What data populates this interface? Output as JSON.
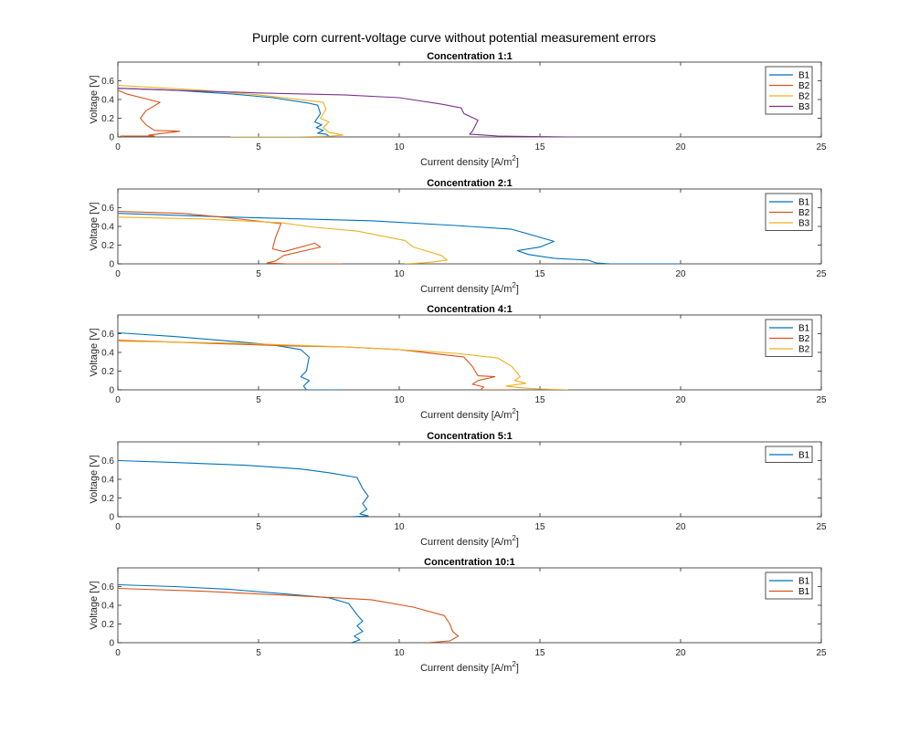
{
  "figure": {
    "title": "Purple corn current-voltage curve without potential measurement errors"
  },
  "colors": {
    "blue": "#0072BD",
    "orange": "#D95319",
    "yellow": "#EDB120",
    "purple": "#7E2F8E",
    "teal": "#1a8a7a"
  },
  "chart_data": [
    {
      "type": "line",
      "title": "Concentration 1:1",
      "xlabel": "Current density [A/m",
      "xlabel_sup": "2",
      "xlabel_tail": "]",
      "ylabel": "Voltage [V]",
      "xlim": [
        0,
        25
      ],
      "ylim": [
        0,
        0.8
      ],
      "xticks": [
        0,
        5,
        10,
        15,
        20,
        25
      ],
      "yticks": [
        0,
        0.2,
        0.4,
        0.6
      ],
      "legend_position": "top-right",
      "series": [
        {
          "name": "B1",
          "color": "#0072BD",
          "points": [
            [
              0,
              0.52
            ],
            [
              2,
              0.5
            ],
            [
              4,
              0.46
            ],
            [
              5.5,
              0.42
            ],
            [
              6.8,
              0.36
            ],
            [
              7.1,
              0.34
            ],
            [
              7.2,
              0.25
            ],
            [
              7.0,
              0.16
            ],
            [
              7.25,
              0.13
            ],
            [
              7.05,
              0.1
            ],
            [
              7.3,
              0.07
            ],
            [
              7.1,
              0.04
            ],
            [
              7.4,
              0.03
            ],
            [
              7.5,
              0.01
            ],
            [
              7.2,
              0
            ]
          ]
        },
        {
          "name": "B2",
          "color": "#D95319",
          "points": [
            [
              0,
              0.5
            ],
            [
              0.3,
              0.46
            ],
            [
              1.1,
              0.4
            ],
            [
              1.5,
              0.37
            ],
            [
              1.0,
              0.28
            ],
            [
              0.8,
              0.2
            ],
            [
              1.0,
              0.13
            ],
            [
              1.3,
              0.07
            ],
            [
              2.2,
              0.06
            ],
            [
              1.1,
              0.02
            ],
            [
              1.3,
              0.01
            ],
            [
              0.1,
              0.01
            ],
            [
              0.2,
              0
            ]
          ]
        },
        {
          "name": "B2",
          "color": "#EDB120",
          "points": [
            [
              0,
              0.55
            ],
            [
              3,
              0.5
            ],
            [
              5,
              0.45
            ],
            [
              7.3,
              0.37
            ],
            [
              7.4,
              0.3
            ],
            [
              7.2,
              0.2
            ],
            [
              7.5,
              0.16
            ],
            [
              7.3,
              0.1
            ],
            [
              7.5,
              0.05
            ],
            [
              8,
              0.02
            ],
            [
              7.6,
              0.01
            ],
            [
              6.5,
              0
            ],
            [
              4,
              0
            ]
          ]
        },
        {
          "name": "B3",
          "color": "#7E2F8E",
          "points": [
            [
              0,
              0.52
            ],
            [
              2,
              0.5
            ],
            [
              5,
              0.47
            ],
            [
              8,
              0.45
            ],
            [
              10,
              0.42
            ],
            [
              11.5,
              0.35
            ],
            [
              12.2,
              0.31
            ],
            [
              12.3,
              0.25
            ],
            [
              12.8,
              0.18
            ],
            [
              12.7,
              0.12
            ],
            [
              12.6,
              0.06
            ],
            [
              12.5,
              0.03
            ],
            [
              13,
              0.02
            ],
            [
              13.5,
              0.01
            ],
            [
              16,
              0
            ]
          ]
        }
      ]
    },
    {
      "type": "line",
      "title": "Concentration 2:1",
      "xlabel": "Current density [A/m",
      "xlabel_sup": "2",
      "xlabel_tail": "]",
      "ylabel": "Voltage [V]",
      "xlim": [
        0,
        25
      ],
      "ylim": [
        0,
        0.8
      ],
      "xticks": [
        0,
        5,
        10,
        15,
        20,
        25
      ],
      "yticks": [
        0,
        0.2,
        0.4,
        0.6
      ],
      "legend_position": "top-right",
      "series": [
        {
          "name": "B1",
          "color": "#0072BD",
          "points": [
            [
              0,
              0.54
            ],
            [
              4,
              0.5
            ],
            [
              9,
              0.46
            ],
            [
              12,
              0.41
            ],
            [
              14,
              0.37
            ],
            [
              15.5,
              0.24
            ],
            [
              15,
              0.18
            ],
            [
              14.2,
              0.14
            ],
            [
              14.6,
              0.1
            ],
            [
              15.5,
              0.06
            ],
            [
              16.7,
              0.04
            ],
            [
              17,
              0.01
            ],
            [
              17.5,
              0
            ],
            [
              20,
              0
            ]
          ]
        },
        {
          "name": "B2",
          "color": "#D95319",
          "points": [
            [
              0,
              0.56
            ],
            [
              2.3,
              0.54
            ],
            [
              4,
              0.49
            ],
            [
              5.8,
              0.43
            ],
            [
              5.6,
              0.28
            ],
            [
              5.5,
              0.16
            ],
            [
              5.9,
              0.13
            ],
            [
              7,
              0.22
            ],
            [
              7.2,
              0.18
            ],
            [
              5.9,
              0.09
            ],
            [
              5.6,
              0.03
            ],
            [
              5.3,
              0.01
            ],
            [
              6,
              0
            ],
            [
              8,
              0
            ]
          ]
        },
        {
          "name": "B3",
          "color": "#EDB120",
          "points": [
            [
              0,
              0.5
            ],
            [
              3,
              0.48
            ],
            [
              5.8,
              0.44
            ],
            [
              7,
              0.39
            ],
            [
              8.5,
              0.35
            ],
            [
              10.2,
              0.25
            ],
            [
              10.5,
              0.18
            ],
            [
              11.5,
              0.09
            ],
            [
              11.7,
              0.04
            ],
            [
              11.2,
              0.02
            ],
            [
              10.8,
              0.01
            ],
            [
              10.2,
              0
            ]
          ]
        }
      ]
    },
    {
      "type": "line",
      "title": "Concentration 4:1",
      "xlabel": "Current density [A/m",
      "xlabel_sup": "2",
      "xlabel_tail": "]",
      "ylabel": "Voltage [V]",
      "xlim": [
        0,
        25
      ],
      "ylim": [
        0,
        0.8
      ],
      "xticks": [
        0,
        5,
        10,
        15,
        20,
        25
      ],
      "yticks": [
        0,
        0.2,
        0.4,
        0.6
      ],
      "legend_position": "top-right",
      "series": [
        {
          "name": "B1",
          "color": "#0072BD",
          "points": [
            [
              0,
              0.61
            ],
            [
              2,
              0.57
            ],
            [
              4,
              0.52
            ],
            [
              5.5,
              0.48
            ],
            [
              6.5,
              0.43
            ],
            [
              6.8,
              0.35
            ],
            [
              6.7,
              0.2
            ],
            [
              6.5,
              0.14
            ],
            [
              6.8,
              0.1
            ],
            [
              6.6,
              0.04
            ],
            [
              6.7,
              0
            ],
            [
              8,
              0
            ]
          ]
        },
        {
          "name": "B2",
          "color": "#D95319",
          "points": [
            [
              0,
              0.53
            ],
            [
              3,
              0.5
            ],
            [
              6,
              0.47
            ],
            [
              8,
              0.46
            ],
            [
              10,
              0.43
            ],
            [
              12.3,
              0.35
            ],
            [
              12.6,
              0.25
            ],
            [
              12.8,
              0.15
            ],
            [
              13.4,
              0.14
            ],
            [
              12.8,
              0.1
            ],
            [
              12.6,
              0.06
            ],
            [
              13.0,
              0.03
            ],
            [
              12.9,
              0
            ],
            [
              14,
              0
            ]
          ]
        },
        {
          "name": "B2",
          "color": "#EDB120",
          "points": [
            [
              0,
              0.52
            ],
            [
              4,
              0.5
            ],
            [
              8,
              0.46
            ],
            [
              10,
              0.43
            ],
            [
              12,
              0.39
            ],
            [
              13.5,
              0.34
            ],
            [
              14,
              0.25
            ],
            [
              14.3,
              0.14
            ],
            [
              14.1,
              0.1
            ],
            [
              14.5,
              0.07
            ],
            [
              13.8,
              0.04
            ],
            [
              14.4,
              0.02
            ],
            [
              15,
              0.01
            ],
            [
              16,
              0
            ]
          ]
        }
      ]
    },
    {
      "type": "line",
      "title": "Concentration 5:1",
      "xlabel": "Current density [A/m",
      "xlabel_sup": "2",
      "xlabel_tail": "]",
      "ylabel": "Voltage [V]",
      "xlim": [
        0,
        25
      ],
      "ylim": [
        0,
        0.8
      ],
      "xticks": [
        0,
        5,
        10,
        15,
        20,
        25
      ],
      "yticks": [
        0,
        0.2,
        0.4,
        0.6
      ],
      "legend_position": "top-right",
      "series": [
        {
          "name": "B1",
          "color": "#0072BD",
          "points": [
            [
              0,
              0.6
            ],
            [
              2,
              0.58
            ],
            [
              4.5,
              0.55
            ],
            [
              6.5,
              0.51
            ],
            [
              7.5,
              0.47
            ],
            [
              8.5,
              0.42
            ],
            [
              8.7,
              0.3
            ],
            [
              8.9,
              0.22
            ],
            [
              8.7,
              0.14
            ],
            [
              8.85,
              0.08
            ],
            [
              8.6,
              0.03
            ],
            [
              8.9,
              0.01
            ],
            [
              8.3,
              0
            ]
          ]
        }
      ]
    },
    {
      "type": "line",
      "title": "Concentration 10:1",
      "xlabel": "Current density [A/m",
      "xlabel_sup": "2",
      "xlabel_tail": "]",
      "ylabel": "Voltage [V]",
      "xlim": [
        0,
        25
      ],
      "ylim": [
        0,
        0.8
      ],
      "xticks": [
        0,
        5,
        10,
        15,
        20,
        25
      ],
      "yticks": [
        0,
        0.2,
        0.4,
        0.6
      ],
      "legend_position": "top-right",
      "series": [
        {
          "name": "B1",
          "color": "#0072BD",
          "points": [
            [
              0,
              0.62
            ],
            [
              2,
              0.6
            ],
            [
              4,
              0.57
            ],
            [
              6,
              0.52
            ],
            [
              7.5,
              0.48
            ],
            [
              8.2,
              0.42
            ],
            [
              8.5,
              0.3
            ],
            [
              8.7,
              0.23
            ],
            [
              8.5,
              0.18
            ],
            [
              8.7,
              0.12
            ],
            [
              8.4,
              0.07
            ],
            [
              8.6,
              0.03
            ],
            [
              8.3,
              0
            ]
          ]
        },
        {
          "name": "B1",
          "color": "#D95319",
          "points": [
            [
              0,
              0.58
            ],
            [
              3,
              0.55
            ],
            [
              6.5,
              0.5
            ],
            [
              9,
              0.46
            ],
            [
              10.5,
              0.38
            ],
            [
              11.6,
              0.29
            ],
            [
              11.8,
              0.2
            ],
            [
              11.9,
              0.12
            ],
            [
              12.1,
              0.07
            ],
            [
              11.8,
              0.02
            ],
            [
              11,
              0
            ]
          ]
        }
      ]
    }
  ]
}
